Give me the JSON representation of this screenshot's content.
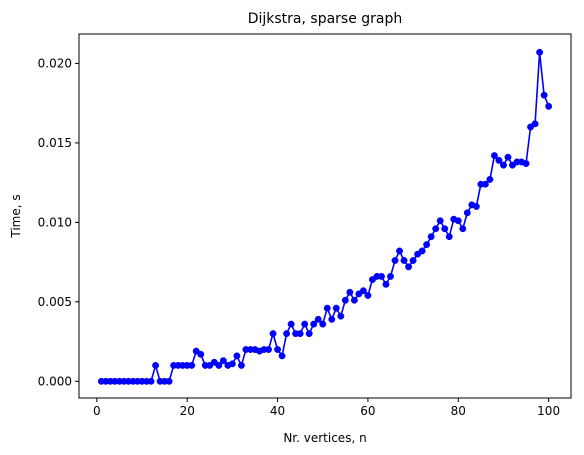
{
  "chart_data": {
    "type": "line",
    "title": "Dijkstra, sparse graph",
    "xlabel": "Nr. vertices, n",
    "ylabel": "Time, s",
    "xlim": [
      -3.95,
      104.95
    ],
    "ylim": [
      -0.00105,
      0.02185
    ],
    "x_ticks": [
      0,
      20,
      40,
      60,
      80,
      100
    ],
    "x_tick_labels": [
      "0",
      "20",
      "40",
      "60",
      "80",
      "100"
    ],
    "y_ticks": [
      0.0,
      0.005,
      0.01,
      0.015,
      0.02
    ],
    "y_tick_labels": [
      "0.000",
      "0.005",
      "0.010",
      "0.015",
      "0.020"
    ],
    "grid": false,
    "legend": "none",
    "series": [
      {
        "name": "Dijkstra",
        "color": "#0000ff",
        "marker": "circle",
        "x": [
          1,
          2,
          3,
          4,
          5,
          6,
          7,
          8,
          9,
          10,
          11,
          12,
          13,
          14,
          15,
          16,
          17,
          18,
          19,
          20,
          21,
          22,
          23,
          24,
          25,
          26,
          27,
          28,
          29,
          30,
          31,
          32,
          33,
          34,
          35,
          36,
          37,
          38,
          39,
          40,
          41,
          42,
          43,
          44,
          45,
          46,
          47,
          48,
          49,
          50,
          51,
          52,
          53,
          54,
          55,
          56,
          57,
          58,
          59,
          60,
          61,
          62,
          63,
          64,
          65,
          66,
          67,
          68,
          69,
          70,
          71,
          72,
          73,
          74,
          75,
          76,
          77,
          78,
          79,
          80,
          81,
          82,
          83,
          84,
          85,
          86,
          87,
          88,
          89,
          90,
          91,
          92,
          93,
          94,
          95,
          96,
          97,
          98,
          99,
          100
        ],
        "values": [
          0.0,
          0.0,
          0.0,
          0.0,
          0.0,
          0.0,
          0.0,
          0.0,
          0.0,
          0.0,
          0.0,
          0.0,
          0.001,
          0.0,
          0.0,
          0.0,
          0.001,
          0.001,
          0.001,
          0.001,
          0.001,
          0.0019,
          0.0017,
          0.001,
          0.001,
          0.0012,
          0.001,
          0.0013,
          0.001,
          0.0011,
          0.0016,
          0.001,
          0.002,
          0.002,
          0.002,
          0.0019,
          0.002,
          0.002,
          0.003,
          0.002,
          0.0016,
          0.003,
          0.0036,
          0.003,
          0.003,
          0.0036,
          0.003,
          0.0036,
          0.0039,
          0.0036,
          0.0046,
          0.0039,
          0.0046,
          0.0041,
          0.0051,
          0.0056,
          0.0051,
          0.0055,
          0.0057,
          0.0054,
          0.0064,
          0.0066,
          0.0066,
          0.0061,
          0.0066,
          0.0076,
          0.0082,
          0.0076,
          0.0072,
          0.0076,
          0.008,
          0.0082,
          0.0086,
          0.0091,
          0.0096,
          0.0101,
          0.0096,
          0.0091,
          0.0102,
          0.0101,
          0.0096,
          0.0106,
          0.0111,
          0.011,
          0.0124,
          0.0124,
          0.0127,
          0.0142,
          0.0139,
          0.0136,
          0.0141,
          0.0136,
          0.0138,
          0.0138,
          0.0137,
          0.016,
          0.0162,
          0.0207,
          0.018,
          0.0173
        ]
      }
    ]
  }
}
